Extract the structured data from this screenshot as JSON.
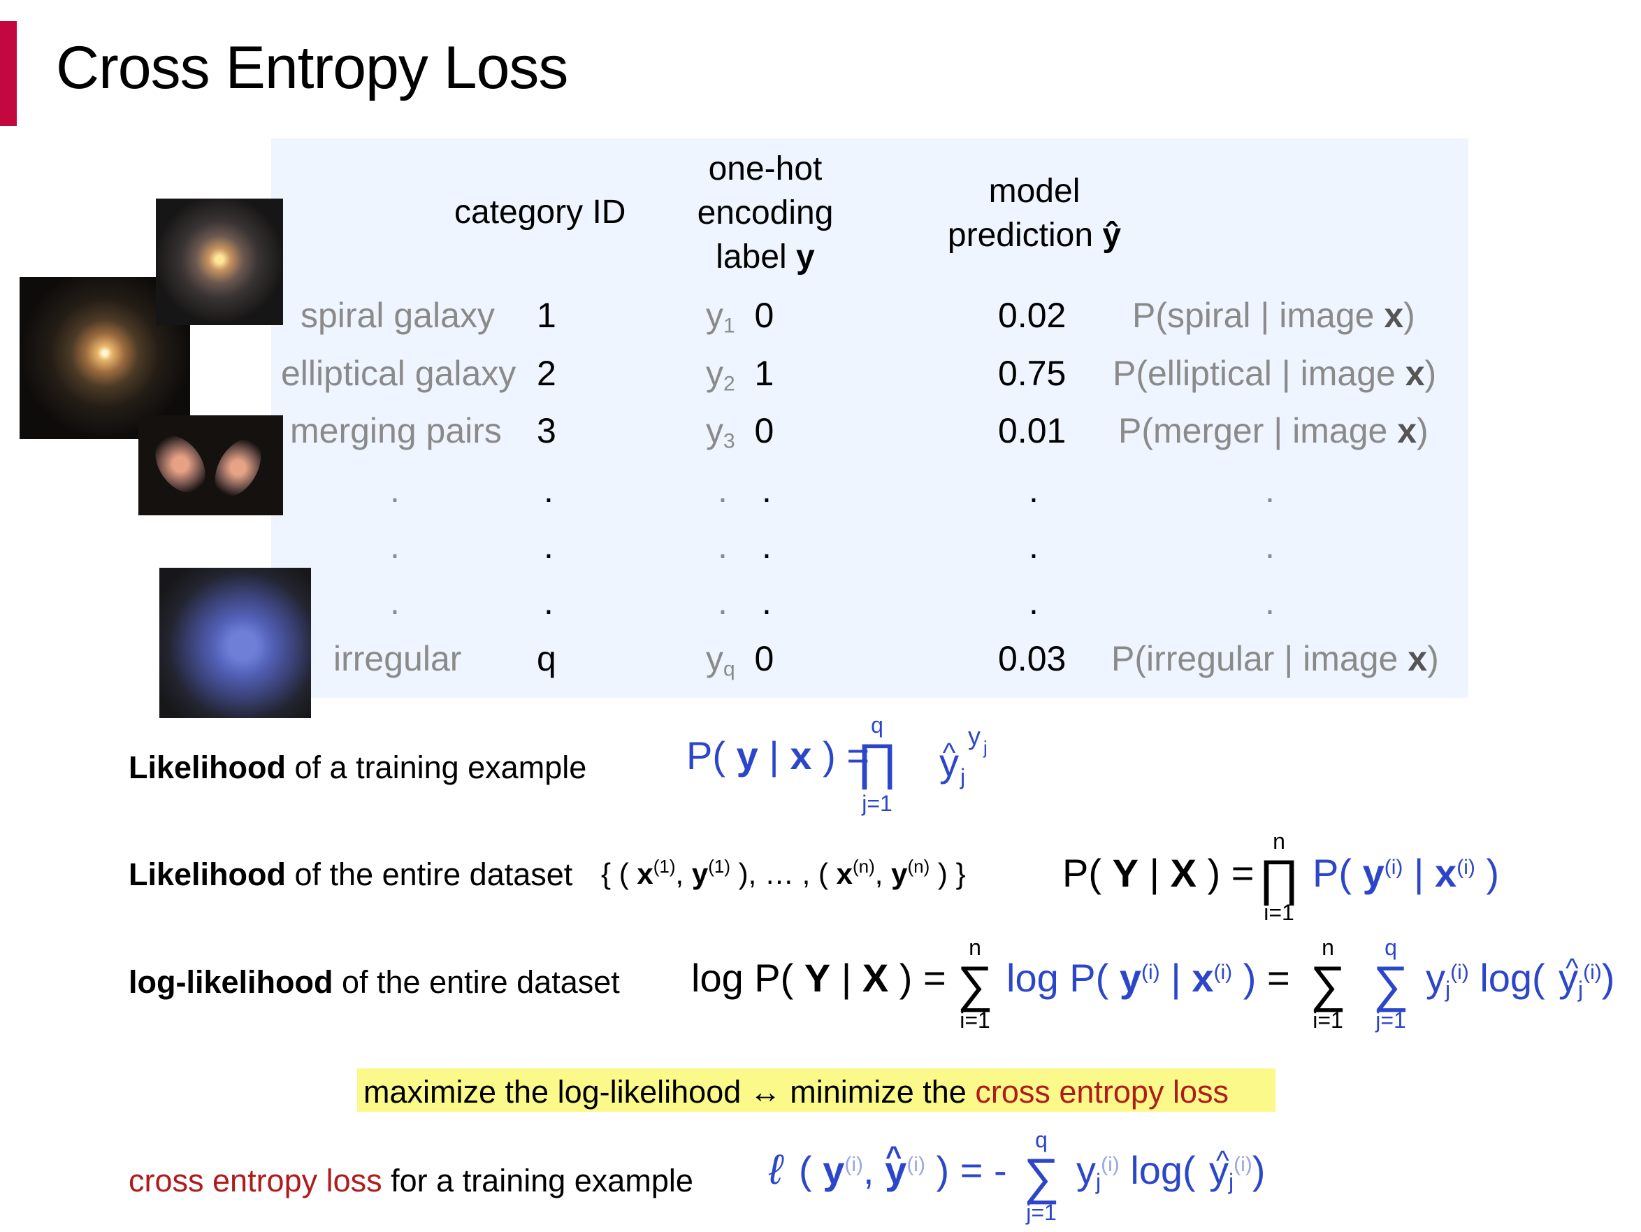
{
  "title": "Cross Entropy Loss",
  "table": {
    "headers": {
      "category_id": "category ID",
      "onehot": [
        "one-hot",
        "encoding",
        "label"
      ],
      "onehot_bold": "y",
      "model": [
        "model",
        "prediction"
      ],
      "model_bold": "ŷ"
    },
    "rows": [
      {
        "name": "spiral galaxy",
        "id": "1",
        "ysym": "y",
        "ysub": "1",
        "yval": "0",
        "pred": "0.02",
        "prob_pre": "P(spiral | image ",
        "prob_x": "x",
        "prob_post": ")"
      },
      {
        "name": "elliptical galaxy",
        "id": "2",
        "ysym": "y",
        "ysub": "2",
        "yval": "1",
        "pred": "0.75",
        "prob_pre": "P(elliptical | image ",
        "prob_x": "x",
        "prob_post": ")"
      },
      {
        "name": "merging pairs",
        "id": "3",
        "ysym": "y",
        "ysub": "3",
        "yval": "0",
        "pred": "0.01",
        "prob_pre": "P(merger | image ",
        "prob_x": "x",
        "prob_post": ")"
      },
      {
        "name": "irregular",
        "id": "q",
        "ysym": "y",
        "ysub": "q",
        "yval": "0",
        "pred": "0.03",
        "prob_pre": "P(irregular | image ",
        "prob_x": "x",
        "prob_post": ")"
      }
    ],
    "dot": "."
  },
  "formulas": {
    "likelihood_example": {
      "bold": "Likelihood",
      "rest": " of a training example"
    },
    "likelihood_dataset": {
      "bold": "Likelihood",
      "rest": " of the entire dataset"
    },
    "loglik_dataset": {
      "bold": "log-likelihood",
      "rest": " of the entire dataset"
    },
    "highlight": {
      "pre": "maximize the log-likelihood ↔ minimize the ",
      "red": "cross entropy loss"
    },
    "ce_loss": {
      "red": "cross entropy loss",
      "rest": " for a training example"
    }
  },
  "colors": {
    "accent": "#c3073f",
    "panel": "#eef5fe",
    "blue": "#2c46c9",
    "red": "#b01b1b",
    "highlight": "#fbf98a"
  }
}
